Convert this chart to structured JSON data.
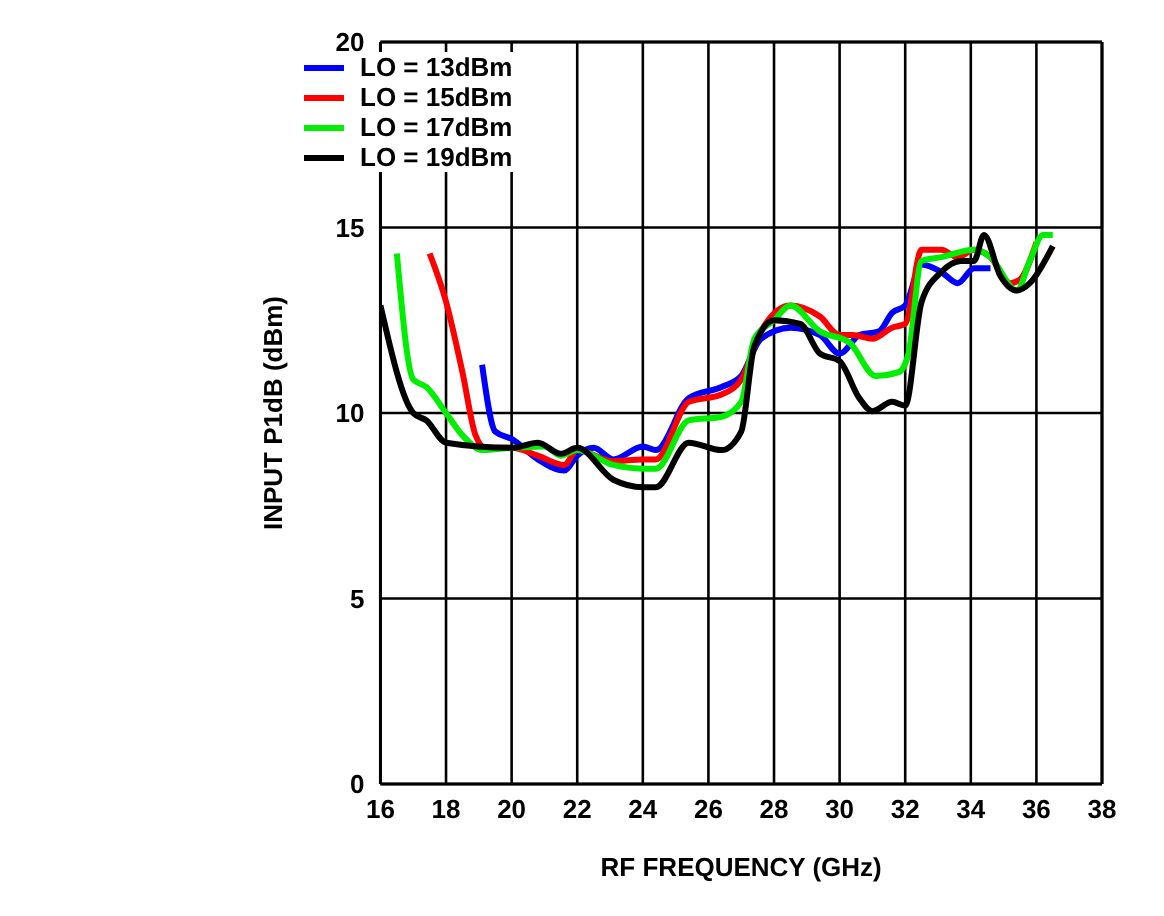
{
  "chart_data": {
    "type": "line",
    "xlabel": "RF FREQUENCY (GHz)",
    "ylabel": "INPUT P1dB (dBm)",
    "xlim": [
      16,
      38
    ],
    "xticks": [
      16,
      18,
      20,
      22,
      24,
      26,
      28,
      30,
      32,
      34,
      36,
      38
    ],
    "ylim": [
      0,
      20
    ],
    "yticks": [
      0,
      5,
      10,
      15,
      20
    ],
    "grid": true,
    "legend": "top left",
    "line_style": "solid",
    "marker": "none",
    "series": [
      {
        "name": "LO = 13dBm",
        "color": "#0000ff",
        "x": [
          19.1,
          19.5,
          20,
          20.8,
          21.6,
          22,
          22.5,
          23.1,
          24,
          24.4,
          25.4,
          26.4,
          27,
          27.6,
          28.5,
          29.4,
          30,
          30.6,
          31.2,
          31.6,
          32,
          32.5,
          33.1,
          33.6,
          34.1,
          34.6
        ],
        "values": [
          11.3,
          9.5,
          9.3,
          8.75,
          8.45,
          8.85,
          9.06,
          8.75,
          9.1,
          9.0,
          10.4,
          10.7,
          11.0,
          12.0,
          12.3,
          12.1,
          11.6,
          12.1,
          12.2,
          12.7,
          12.9,
          14.0,
          13.8,
          13.5,
          13.9,
          13.9
        ]
      },
      {
        "name": "LO = 15dBm",
        "color": "#ff0000",
        "x": [
          17.5,
          18,
          18.5,
          18.9,
          19.2,
          20,
          20.8,
          21.6,
          22,
          23.1,
          24,
          24.4,
          25.4,
          26.4,
          27,
          27.6,
          28.5,
          29.4,
          30,
          30.4,
          31,
          31.6,
          32,
          32.5,
          33.1,
          33.6,
          34.1,
          34.6,
          35.2,
          35.5,
          36
        ],
        "values": [
          14.3,
          13.0,
          11.1,
          9.4,
          9.06,
          9.06,
          8.85,
          8.6,
          9.0,
          8.7,
          8.75,
          8.75,
          10.3,
          10.5,
          10.9,
          12.2,
          12.9,
          12.6,
          12.1,
          12.1,
          12.0,
          12.3,
          12.4,
          14.4,
          14.4,
          14.2,
          14.4,
          14.2,
          13.5,
          13.6,
          14.6
        ]
      },
      {
        "name": "LO = 17dBm",
        "color": "#00ee00",
        "x": [
          16.5,
          17,
          17.4,
          18,
          18.5,
          19.1,
          20,
          21,
          21.5,
          22,
          23.1,
          24,
          24.4,
          25.4,
          26.4,
          27,
          27.4,
          28,
          28.5,
          29.4,
          30.3,
          31.1,
          31.8,
          32.1,
          32.5,
          33.1,
          34.1,
          34.6,
          35.4,
          35.8,
          36.2,
          36.5
        ],
        "values": [
          14.3,
          10.9,
          10.7,
          10.0,
          9.4,
          9.0,
          9.06,
          9.1,
          8.85,
          9.0,
          8.6,
          8.5,
          8.5,
          9.8,
          9.9,
          10.3,
          12.0,
          12.5,
          12.9,
          12.2,
          11.9,
          11.0,
          11.1,
          11.6,
          14.1,
          14.2,
          14.4,
          14.2,
          13.3,
          14.1,
          14.8,
          14.8
        ]
      },
      {
        "name": "LO = 19dBm",
        "color": "#000000",
        "x": [
          16,
          17,
          17.4,
          18,
          20,
          20.8,
          21.5,
          22,
          23.1,
          24,
          24.4,
          25.4,
          26.4,
          27,
          27.4,
          28,
          28.8,
          29.4,
          30,
          30.6,
          31,
          31.6,
          32,
          32.5,
          33.1,
          33.7,
          34.1,
          34.4,
          34.9,
          35.4,
          35.8,
          36.5
        ],
        "values": [
          12.9,
          10.0,
          9.8,
          9.2,
          9.06,
          9.2,
          8.9,
          9.06,
          8.2,
          8.0,
          8.0,
          9.2,
          9.0,
          9.5,
          11.8,
          12.5,
          12.4,
          11.6,
          11.4,
          10.4,
          10.05,
          10.3,
          10.2,
          13.0,
          13.8,
          14.1,
          14.1,
          14.8,
          13.7,
          13.3,
          13.5,
          14.5
        ]
      }
    ]
  }
}
